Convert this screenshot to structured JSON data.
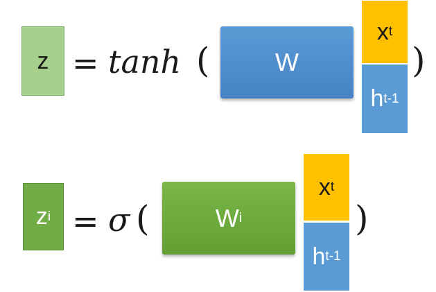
{
  "equations": [
    {
      "output": {
        "base": "z",
        "sup": ""
      },
      "equals": "=",
      "function": "tanh",
      "open_paren": "(",
      "weight": {
        "base": "W",
        "sup": ""
      },
      "input": {
        "base": "x",
        "sup": "t"
      },
      "hidden": {
        "base": "h",
        "sup": "t-1"
      },
      "close_paren": ")"
    },
    {
      "output": {
        "base": "z",
        "sup": "i"
      },
      "equals": "=",
      "function": "σ",
      "open_paren": "(",
      "weight": {
        "base": "W",
        "sup": "i"
      },
      "input": {
        "base": "x",
        "sup": "t"
      },
      "hidden": {
        "base": "h",
        "sup": "t-1"
      },
      "close_paren": ")"
    }
  ],
  "colors": {
    "z_box": "#a8d08d",
    "z_i_box": "#70ad47",
    "w_box": "#5b9bd5",
    "w_i_box": "#70ad47",
    "x_box": "#ffc000",
    "h_box": "#5b9bd5"
  }
}
